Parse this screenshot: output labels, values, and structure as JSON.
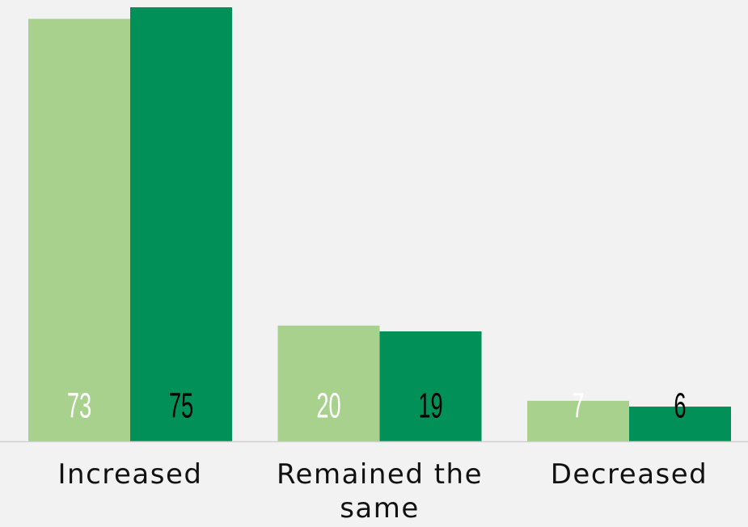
{
  "chart_data": {
    "type": "bar",
    "categories": [
      "Increased",
      "Remained the same",
      "Decreased"
    ],
    "series": [
      {
        "color": "#a9d18e",
        "label_color": "#ffffff",
        "values": [
          73,
          20,
          7
        ]
      },
      {
        "color": "#009058",
        "label_color": "#000000",
        "values": [
          75,
          19,
          6
        ]
      }
    ],
    "ylim": [
      0,
      75
    ]
  }
}
